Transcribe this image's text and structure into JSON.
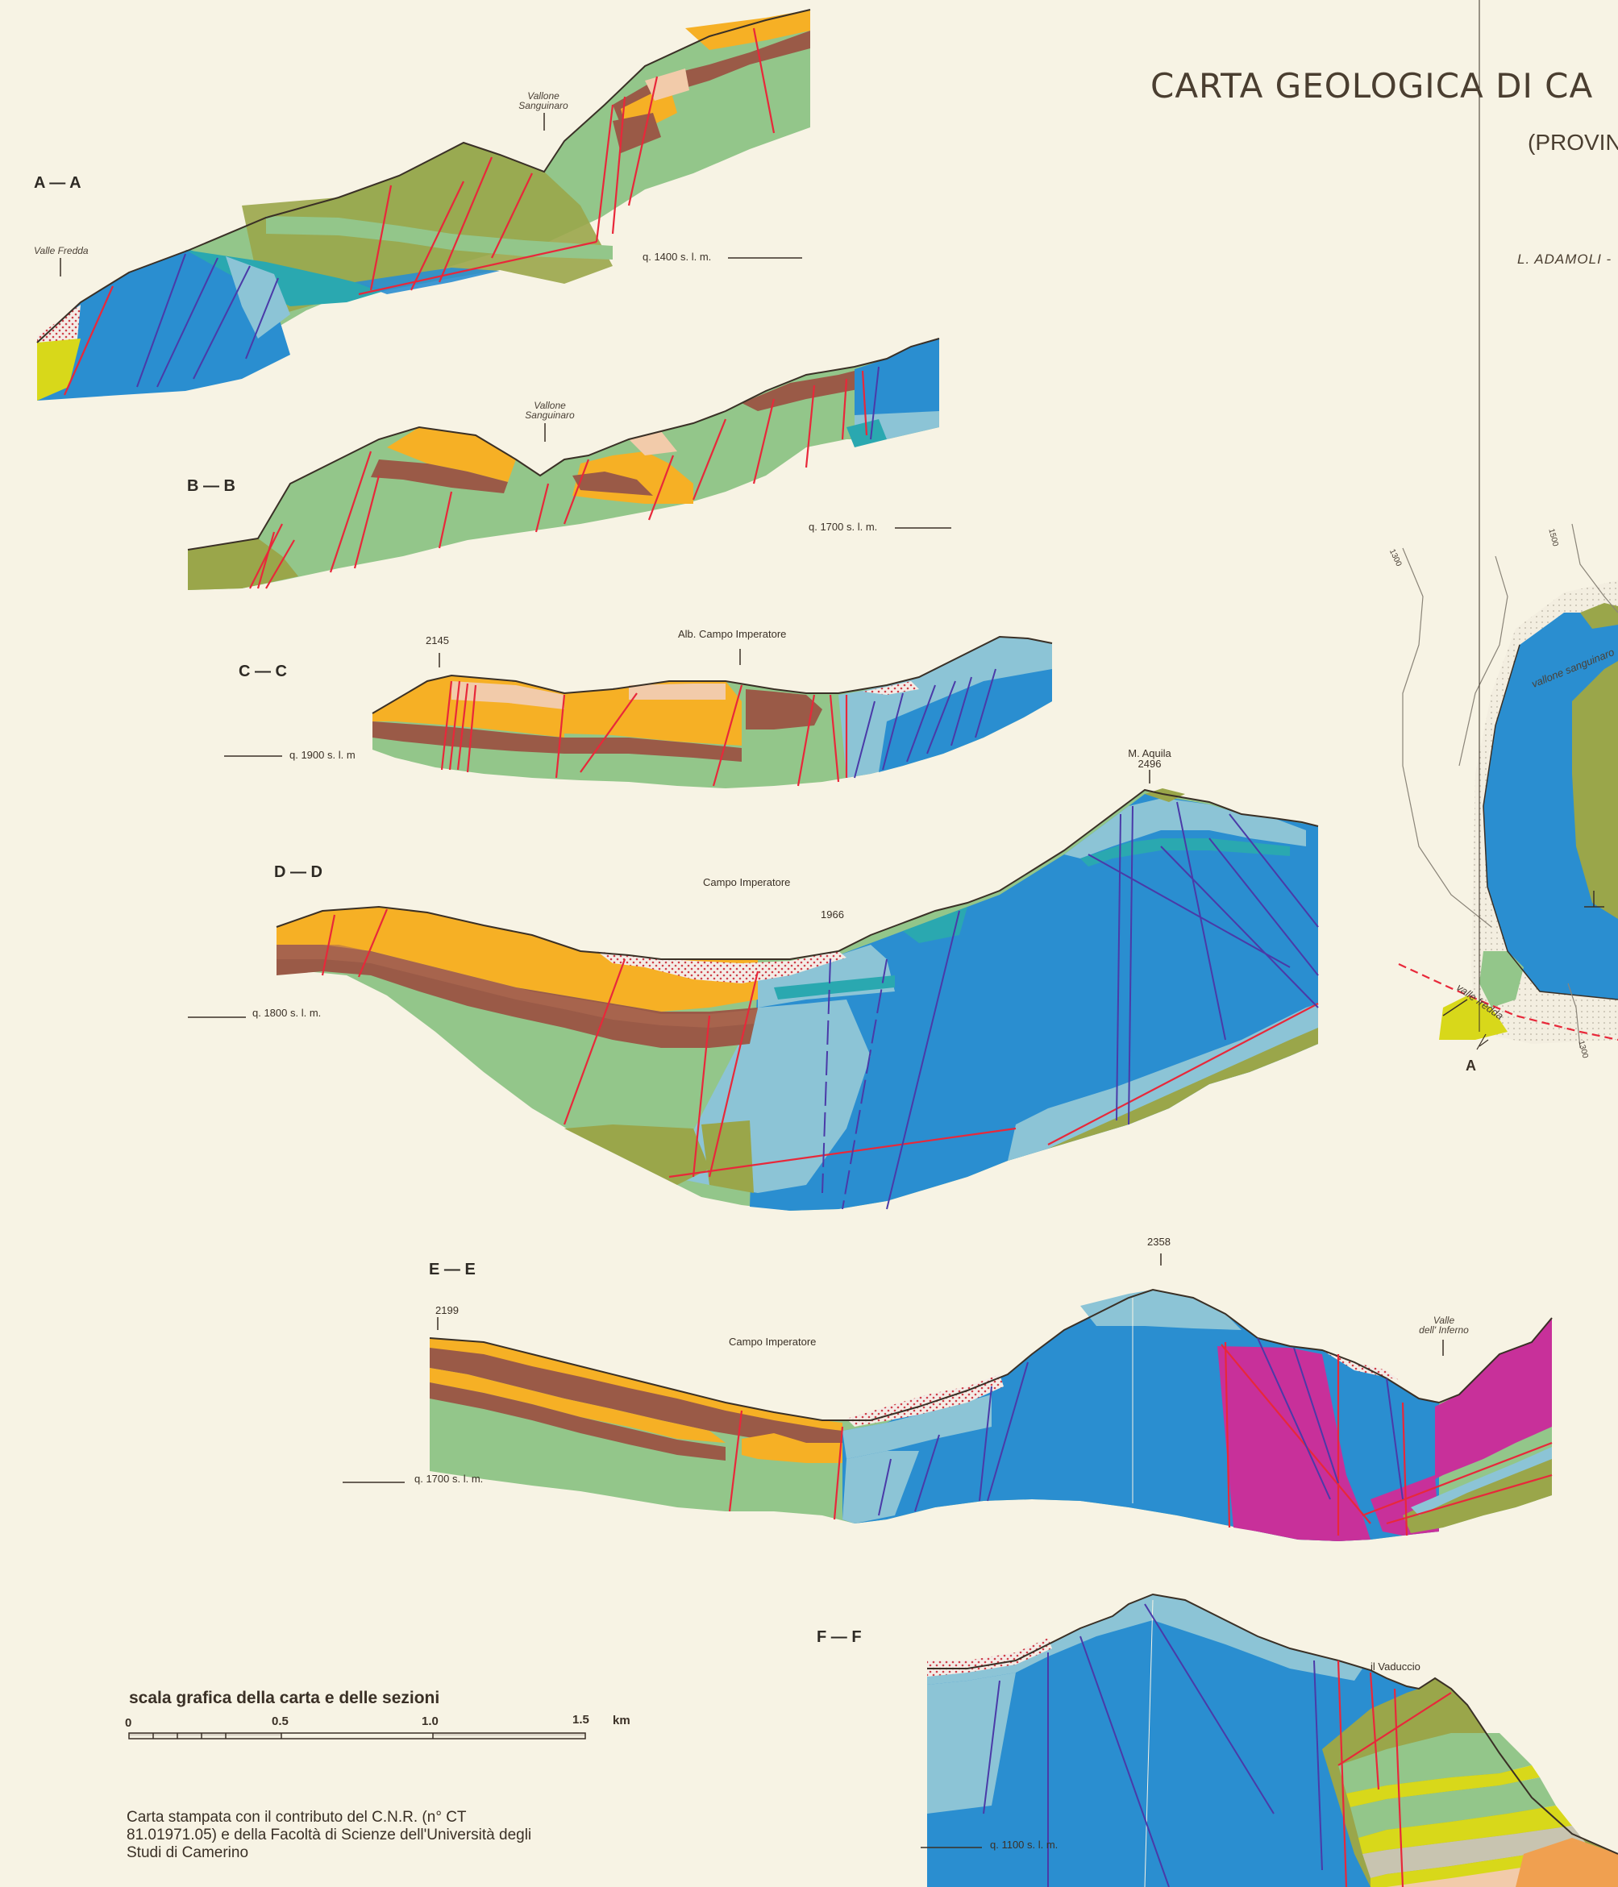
{
  "title": "CARTA GEOLOGICA DI CA",
  "subtitle": "(PROVIN",
  "authors": "L. ADAMOLI -",
  "sections": [
    {
      "id": "A",
      "label": "A — A",
      "places": [
        "Vallone\nSanguinaro",
        "Valle Fredda"
      ],
      "elevation": "q. 1400 s. l. m."
    },
    {
      "id": "B",
      "label": "B — B",
      "places": [
        "Vallone\nSanguinaro"
      ],
      "elevation": "q. 1700 s. l. m."
    },
    {
      "id": "C",
      "label": "C — C",
      "places": [
        "2145",
        "Alb. Campo Imperatore"
      ],
      "elevation": "q. 1900 s. l. m"
    },
    {
      "id": "D",
      "label": "D — D",
      "places": [
        "M. Aquila\n2496",
        "Campo Imperatore",
        "1966"
      ],
      "elevation": "q. 1800 s. l. m."
    },
    {
      "id": "E",
      "label": "E — E",
      "places": [
        "2358",
        "2199",
        "Campo Imperatore",
        "Valle\ndell' Inferno"
      ],
      "elevation": "q. 1700 s. l. m."
    },
    {
      "id": "F",
      "label": "F — F",
      "places": [
        "il Vaduccio"
      ],
      "elevation": "q. 1100 s. l. m."
    }
  ],
  "labels": {
    "a_vallone_1": "Vallone",
    "a_vallone_2": "Sanguinaro",
    "a_valle_fredda": "Valle Fredda",
    "b_vallone_1": "Vallone",
    "b_vallone_2": "Sanguinaro",
    "c_peak": "2145",
    "c_albergo": "Alb. Campo Imperatore",
    "d_aquila_1": "M. Aquila",
    "d_aquila_2": "2496",
    "d_campo": "Campo Imperatore",
    "d_1966": "1966",
    "e_2358": "2358",
    "e_2199": "2199",
    "e_campo": "Campo Imperatore",
    "e_inferno_1": "Valle",
    "e_inferno_2": "dell' Inferno",
    "f_vaduccio": "il Vaduccio",
    "map_a": "A",
    "map_vallone": "vallone sanguinaro",
    "map_fredda": "valle fredda",
    "map_1300a": "1300",
    "map_1500": "1500",
    "map_1300b": "1300"
  },
  "scale": {
    "title": "scala grafica della carta e delle sezioni",
    "ticks": [
      "0",
      "0.5",
      "1.0",
      "1.5"
    ],
    "unit": "km"
  },
  "credits": "Carta stampata con il contributo del C.N.R. (n° CT 81.01971.05) e della Facoltà di Scienze dell'Università degli Studi di Camerino",
  "colors": {
    "background": "#f7f3e4",
    "green": "#93c68a",
    "olive": "#9aa64a",
    "brown": "#9a5a47",
    "orange": "#f6b025",
    "peach": "#f2cbaa",
    "blue": "#2a8ed0",
    "lightblue": "#8cc4d6",
    "teal": "#2aa8b0",
    "magenta": "#c8309a",
    "yellow": "#d8d81a",
    "fault": "#e8283a"
  }
}
